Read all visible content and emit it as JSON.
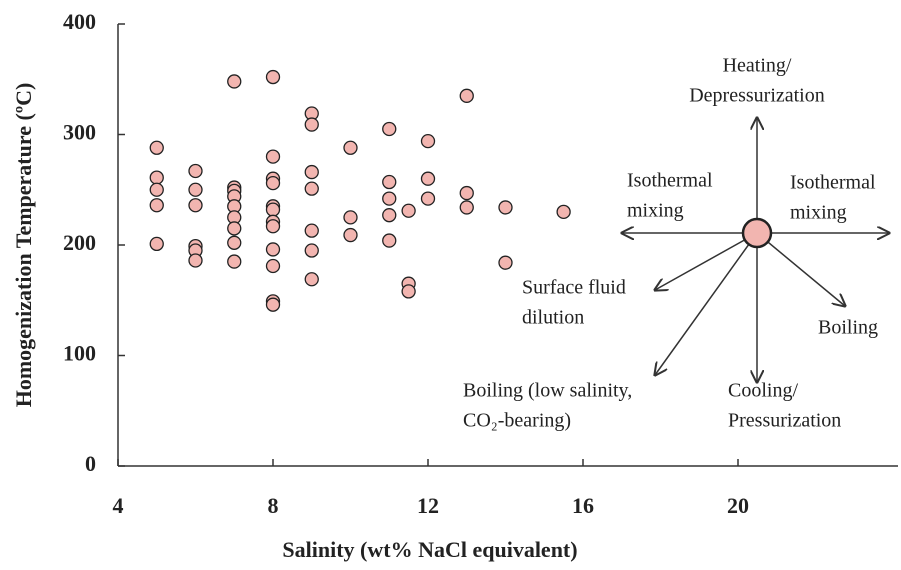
{
  "chart_data": {
    "type": "scatter",
    "xlabel": "Salinity (wt% NaCl equivalent)",
    "ylabel": "Homogenization Temperature (ºC)",
    "xlim": [
      4,
      24
    ],
    "ylim": [
      0,
      400
    ],
    "xticks": [
      4,
      8,
      12,
      16,
      20
    ],
    "yticks": [
      0,
      100,
      200,
      300,
      400
    ],
    "color": "#f2b5b0",
    "x": [
      5,
      5,
      5,
      5,
      5,
      6,
      6,
      6,
      6,
      6,
      6,
      7,
      7,
      7,
      7,
      7,
      7,
      7,
      7,
      7,
      8,
      8,
      8,
      8,
      8,
      8,
      8,
      8,
      8,
      8,
      8,
      8,
      9,
      9,
      9,
      9,
      9,
      9,
      9,
      10,
      10,
      10,
      11,
      11,
      11,
      11,
      11,
      11.5,
      11.5,
      11.5,
      12,
      12,
      12,
      13,
      13,
      13,
      14,
      14,
      15.5
    ],
    "values": [
      288,
      261,
      250,
      236,
      201,
      267,
      250,
      236,
      199,
      195,
      186,
      348,
      252,
      249,
      244,
      235,
      225,
      215,
      202,
      185,
      352,
      280,
      260,
      256,
      235,
      232,
      221,
      217,
      196,
      181,
      149,
      146,
      319,
      309,
      266,
      251,
      213,
      195,
      169,
      288,
      225,
      209,
      305,
      257,
      242,
      227,
      204,
      231,
      165,
      158,
      294,
      260,
      242,
      335,
      247,
      234,
      234,
      184,
      230
    ],
    "annotations": [
      {
        "lines": [
          "Heating/",
          "Depressurization"
        ]
      },
      {
        "lines": [
          "Isothermal",
          "mixing"
        ]
      },
      {
        "lines": [
          "Isothermal",
          "mixing"
        ]
      },
      {
        "lines": [
          "Surface fluid",
          "dilution"
        ]
      },
      {
        "lines": [
          "Boiling (low salinity,",
          "CO₂-bearing)"
        ]
      },
      {
        "lines": [
          "Cooling/",
          "Pressurization"
        ]
      },
      {
        "lines": [
          "Boiling"
        ]
      }
    ]
  }
}
